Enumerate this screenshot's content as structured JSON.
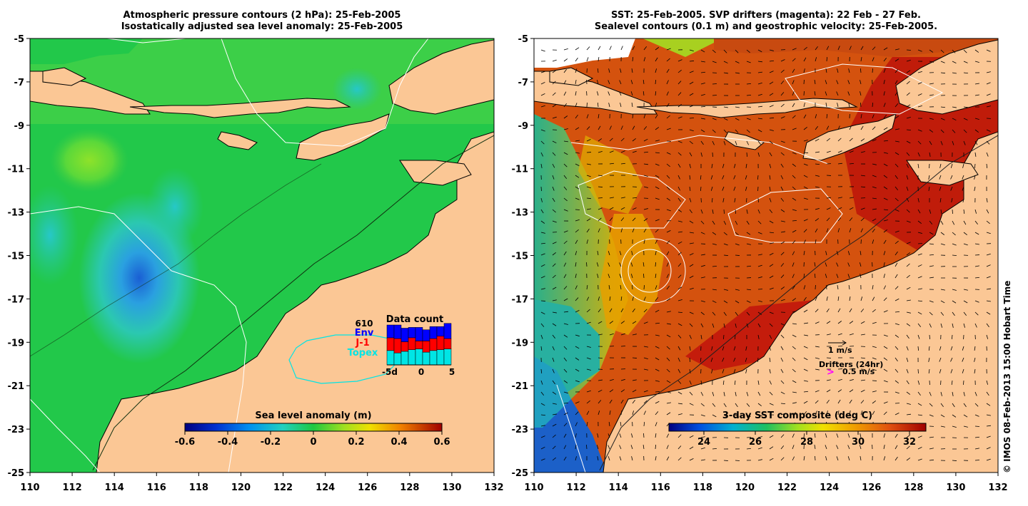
{
  "left_panel": {
    "title_line1": "Atmospheric pressure contours (2 hPa): 25-Feb-2005",
    "title_line2": "Isostatically adjusted sea level anomaly: 25-Feb-2005",
    "lat_ticks": [
      "-5",
      "-7",
      "-9",
      "-11",
      "-13",
      "-15",
      "-17",
      "-19",
      "-21",
      "-23",
      "-25"
    ],
    "lon_ticks": [
      "110",
      "112",
      "114",
      "116",
      "118",
      "120",
      "122",
      "124",
      "126",
      "128",
      "130"
    ],
    "colorbar": {
      "label": "Sea level anomaly (m)",
      "ticks": [
        "-0.6",
        "-0.4",
        "-0.2",
        "0",
        "0.2",
        "0.4",
        "0.6"
      ]
    },
    "data_count": {
      "title": "Data count",
      "count": "610",
      "legend": [
        {
          "label": "Env",
          "color": "#0000ff"
        },
        {
          "label": "J-1",
          "color": "#ff0000"
        },
        {
          "label": "Topex",
          "color": "#00e5e5"
        }
      ],
      "x_ticks": [
        "-5d",
        "0",
        "5"
      ],
      "bars": [
        {
          "topex": 0.36,
          "j1": 0.32,
          "env": 0.32
        },
        {
          "topex": 0.3,
          "j1": 0.36,
          "env": 0.34
        },
        {
          "topex": 0.34,
          "j1": 0.24,
          "env": 0.34
        },
        {
          "topex": 0.38,
          "j1": 0.3,
          "env": 0.26
        },
        {
          "topex": 0.4,
          "j1": 0.2,
          "env": 0.34
        },
        {
          "topex": 0.32,
          "j1": 0.28,
          "env": 0.28
        },
        {
          "topex": 0.36,
          "j1": 0.3,
          "env": 0.3
        },
        {
          "topex": 0.38,
          "j1": 0.34,
          "env": 0.24
        },
        {
          "topex": 0.4,
          "j1": 0.26,
          "env": 0.38
        }
      ]
    }
  },
  "right_panel": {
    "title_line1": "SST: 25-Feb-2005. SVP drifters (magenta): 22 Feb - 27 Feb.",
    "title_line2": "Sealevel contours (0.1 m) and geostrophic velocity: 25-Feb-2005.",
    "lat_ticks": [
      "-5",
      "-7",
      "-9",
      "-11",
      "-13",
      "-15",
      "-17",
      "-19",
      "-21",
      "-23",
      "-25"
    ],
    "lon_ticks": [
      "110",
      "112",
      "114",
      "116",
      "118",
      "120",
      "122",
      "124",
      "126",
      "128",
      "130",
      "132"
    ],
    "colorbar": {
      "label": "3-day SST composite (deg C)",
      "ticks": [
        "24",
        "26",
        "28",
        "30",
        "32"
      ]
    },
    "velocity_scale": "1 m/s",
    "drifters_label": "Drifters (24hr)",
    "drifter_scale": "0.5 m/s"
  },
  "left_lon_last": "132",
  "copyright": "© IMOS 08-Feb-2013 15:00 Hobart Time",
  "colors": {
    "land": "#fbc795",
    "sea_green": "#22c84a",
    "sst_orange": "#d4520e",
    "sst_red": "#c41c0c"
  }
}
